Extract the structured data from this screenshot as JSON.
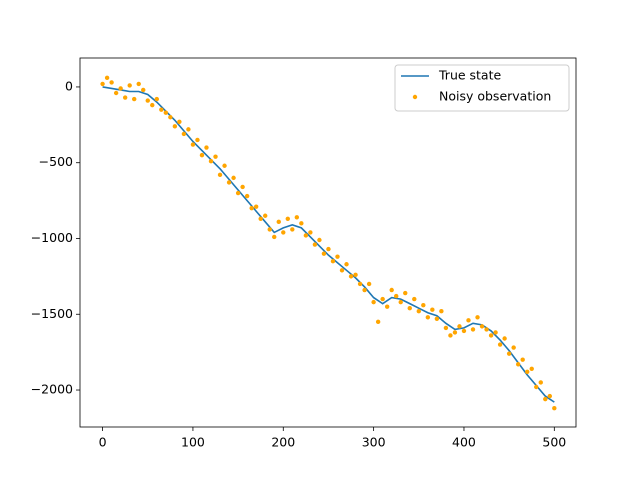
{
  "chart_data": {
    "type": "line",
    "xlim": [
      -25,
      524
    ],
    "ylim": [
      -2244,
      191
    ],
    "xticks": [
      0,
      100,
      200,
      300,
      400,
      500
    ],
    "yticks": [
      {
        "value": -2000,
        "label": "−2000"
      },
      {
        "value": -1500,
        "label": "−1500"
      },
      {
        "value": -1000,
        "label": "−1000"
      },
      {
        "value": -500,
        "label": "−500"
      },
      0
    ],
    "legend": "upper right",
    "series": [
      {
        "name": "True state",
        "color": "#1f77b4",
        "type": "line",
        "x": [
          0,
          10,
          20,
          30,
          40,
          50,
          60,
          70,
          80,
          90,
          100,
          110,
          120,
          130,
          140,
          150,
          160,
          170,
          180,
          190,
          200,
          210,
          220,
          230,
          240,
          250,
          260,
          270,
          280,
          290,
          300,
          310,
          320,
          330,
          340,
          350,
          360,
          370,
          380,
          390,
          400,
          410,
          420,
          430,
          440,
          450,
          460,
          470,
          480,
          490,
          500
        ],
        "values": [
          0,
          -10,
          -20,
          -30,
          -30,
          -50,
          -100,
          -160,
          -220,
          -290,
          -360,
          -420,
          -480,
          -540,
          -610,
          -680,
          -750,
          -820,
          -890,
          -960,
          -930,
          -910,
          -930,
          -990,
          -1050,
          -1110,
          -1160,
          -1210,
          -1260,
          -1320,
          -1390,
          -1430,
          -1390,
          -1400,
          -1430,
          -1460,
          -1490,
          -1510,
          -1560,
          -1600,
          -1590,
          -1560,
          -1570,
          -1610,
          -1670,
          -1740,
          -1820,
          -1900,
          -1970,
          -2040,
          -2080
        ]
      },
      {
        "name": "Noisy observation",
        "color": "#ffa500",
        "type": "scatter",
        "x": [
          0,
          5,
          10,
          15,
          20,
          25,
          30,
          35,
          40,
          45,
          50,
          55,
          60,
          65,
          70,
          75,
          80,
          85,
          90,
          95,
          100,
          105,
          110,
          115,
          120,
          125,
          130,
          135,
          140,
          145,
          150,
          155,
          160,
          165,
          170,
          175,
          180,
          185,
          190,
          195,
          200,
          205,
          210,
          215,
          220,
          225,
          230,
          235,
          240,
          245,
          250,
          255,
          260,
          265,
          270,
          275,
          280,
          285,
          290,
          295,
          300,
          305,
          310,
          315,
          320,
          325,
          330,
          335,
          340,
          345,
          350,
          355,
          360,
          365,
          370,
          375,
          380,
          385,
          390,
          395,
          400,
          405,
          410,
          415,
          420,
          425,
          430,
          435,
          440,
          445,
          450,
          455,
          460,
          465,
          470,
          475,
          480,
          485,
          490,
          495,
          500
        ],
        "values": [
          20,
          60,
          30,
          -40,
          -10,
          -70,
          10,
          -80,
          20,
          -20,
          -90,
          -120,
          -80,
          -150,
          -170,
          -200,
          -260,
          -230,
          -310,
          -280,
          -380,
          -350,
          -450,
          -400,
          -490,
          -460,
          -580,
          -520,
          -630,
          -600,
          -700,
          -660,
          -720,
          -800,
          -790,
          -870,
          -850,
          -940,
          -990,
          -890,
          -960,
          -870,
          -940,
          -860,
          -900,
          -980,
          -960,
          -1040,
          -1010,
          -1100,
          -1070,
          -1150,
          -1120,
          -1210,
          -1170,
          -1250,
          -1240,
          -1300,
          -1340,
          -1300,
          -1420,
          -1550,
          -1400,
          -1450,
          -1340,
          -1380,
          -1420,
          -1360,
          -1460,
          -1400,
          -1480,
          -1440,
          -1520,
          -1470,
          -1530,
          -1480,
          -1590,
          -1640,
          -1620,
          -1580,
          -1610,
          -1540,
          -1600,
          -1520,
          -1580,
          -1600,
          -1640,
          -1620,
          -1700,
          -1660,
          -1760,
          -1720,
          -1830,
          -1800,
          -1880,
          -1860,
          -1980,
          -1950,
          -2060,
          -2040,
          -2120
        ]
      }
    ]
  }
}
